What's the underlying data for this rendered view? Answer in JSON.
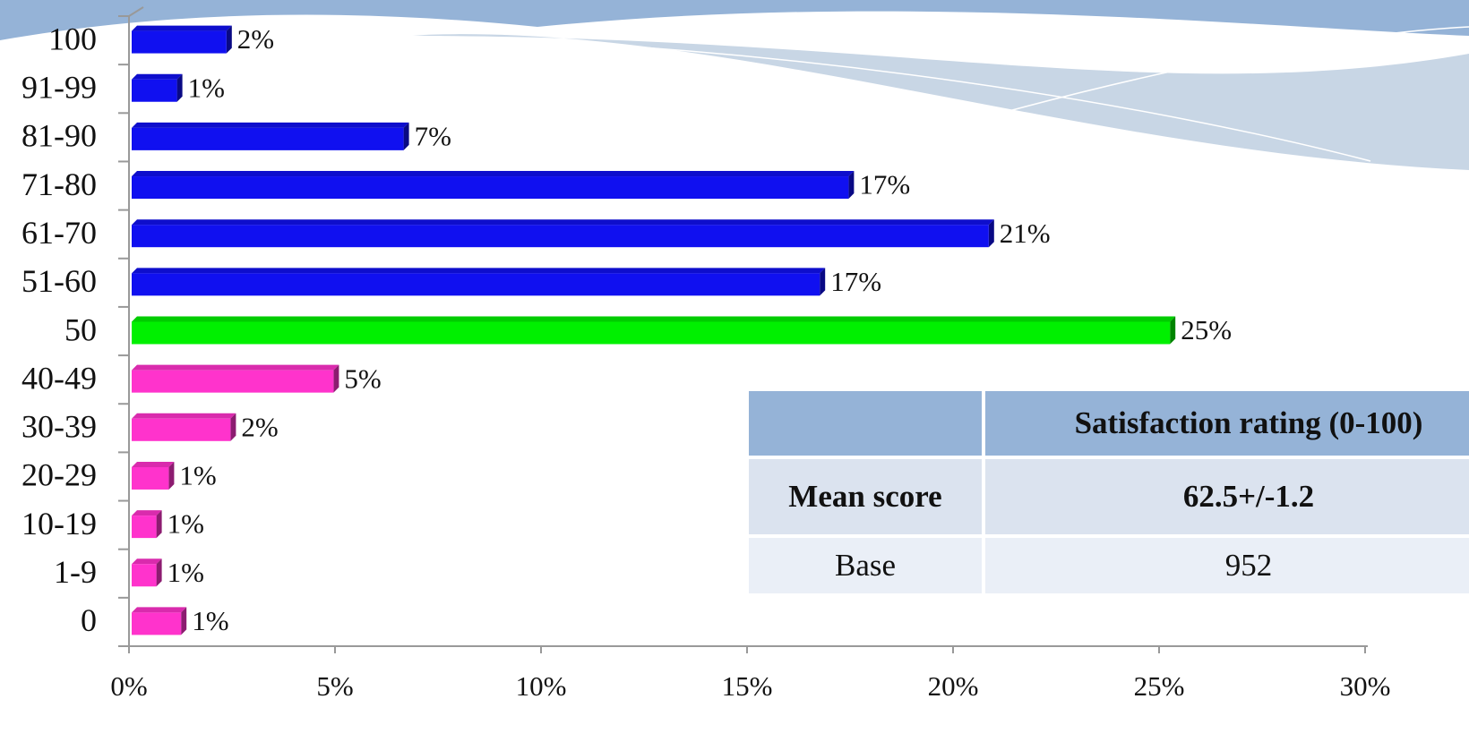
{
  "chart_data": {
    "type": "hbar",
    "categories": [
      "100",
      "91-99",
      "81-90",
      "71-80",
      "61-70",
      "51-60",
      "50",
      "40-49",
      "30-39",
      "20-29",
      "10-19",
      "1-9",
      "0"
    ],
    "values": [
      2.3,
      1.1,
      6.6,
      17.4,
      20.8,
      16.7,
      25.2,
      4.9,
      2.4,
      0.9,
      0.6,
      0.6,
      1.2
    ],
    "value_labels": [
      "2%",
      "1%",
      "7%",
      "17%",
      "21%",
      "17%",
      "25%",
      "5%",
      "2%",
      "1%",
      "1%",
      "1%",
      "1%"
    ],
    "colors": [
      "#1010f0",
      "#1010f0",
      "#1010f0",
      "#1010f0",
      "#1010f0",
      "#1010f0",
      "#00f000",
      "#ff33cc",
      "#ff33cc",
      "#ff33cc",
      "#ff33cc",
      "#ff33cc",
      "#ff33cc"
    ],
    "xlim": [
      0,
      30
    ],
    "xticks": [
      {
        "value": 0,
        "label": "0%"
      },
      {
        "value": 5,
        "label": "5%"
      },
      {
        "value": 10,
        "label": "10%"
      },
      {
        "value": 15,
        "label": "15%"
      },
      {
        "value": 20,
        "label": "20%"
      },
      {
        "value": 25,
        "label": "25%"
      },
      {
        "value": 30,
        "label": "30%"
      }
    ]
  },
  "table": {
    "header": [
      "",
      "Satisfaction rating (0-100)"
    ],
    "rows": [
      [
        "Mean score",
        "62.5+/-1.2"
      ],
      [
        "Base",
        "952"
      ]
    ]
  }
}
